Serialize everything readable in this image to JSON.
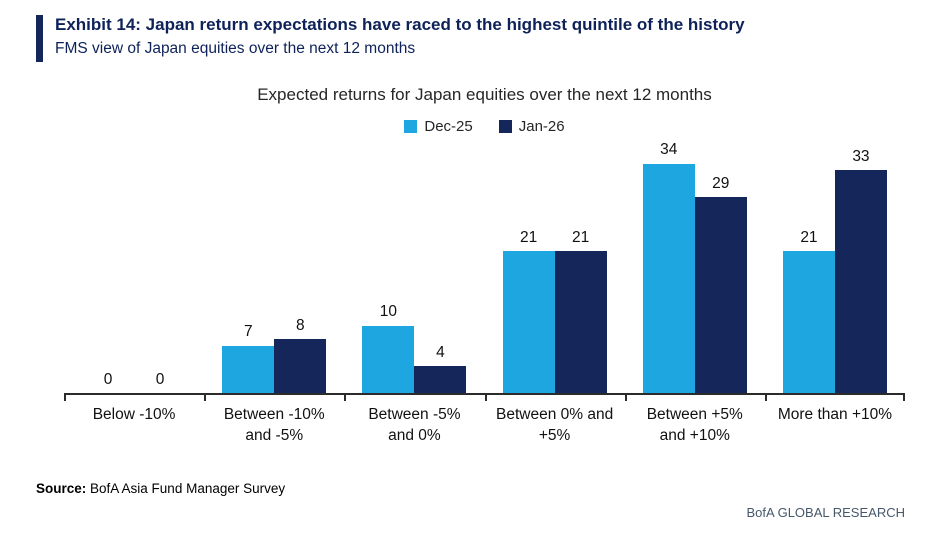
{
  "header": {
    "exhibit_title": "Exhibit 14: Japan return expectations have raced to the highest quintile of the history",
    "subtitle": "FMS view of Japan equities over the next 12 months"
  },
  "chart_data": {
    "type": "bar",
    "title": "Expected returns for Japan equities over the next 12 months",
    "categories": [
      "Below -10%",
      "Between -10% and -5%",
      "Between -5% and 0%",
      "Between 0% and +5%",
      "Between +5% and +10%",
      "More than +10%"
    ],
    "series": [
      {
        "name": "Dec-25",
        "color": "#1DA6E0",
        "values": [
          0,
          7,
          10,
          21,
          34,
          21
        ]
      },
      {
        "name": "Jan-26",
        "color": "#14265A",
        "values": [
          0,
          8,
          4,
          21,
          29,
          33
        ]
      }
    ],
    "ylim": [
      0,
      38
    ],
    "grid": false,
    "legend_position": "top-center",
    "value_labels": true,
    "xlabel": "",
    "ylabel": ""
  },
  "footer": {
    "source_label": "Source:",
    "source_text": " BofA Asia Fund Manager Survey",
    "brand": "BofA GLOBAL RESEARCH"
  },
  "colors": {
    "accent_bar": "#14265A",
    "title_text": "#0E2259",
    "dec25": "#1DA6E0",
    "jan26": "#14265A",
    "axis": "#2b2b2b",
    "brand_text": "#47586B"
  }
}
